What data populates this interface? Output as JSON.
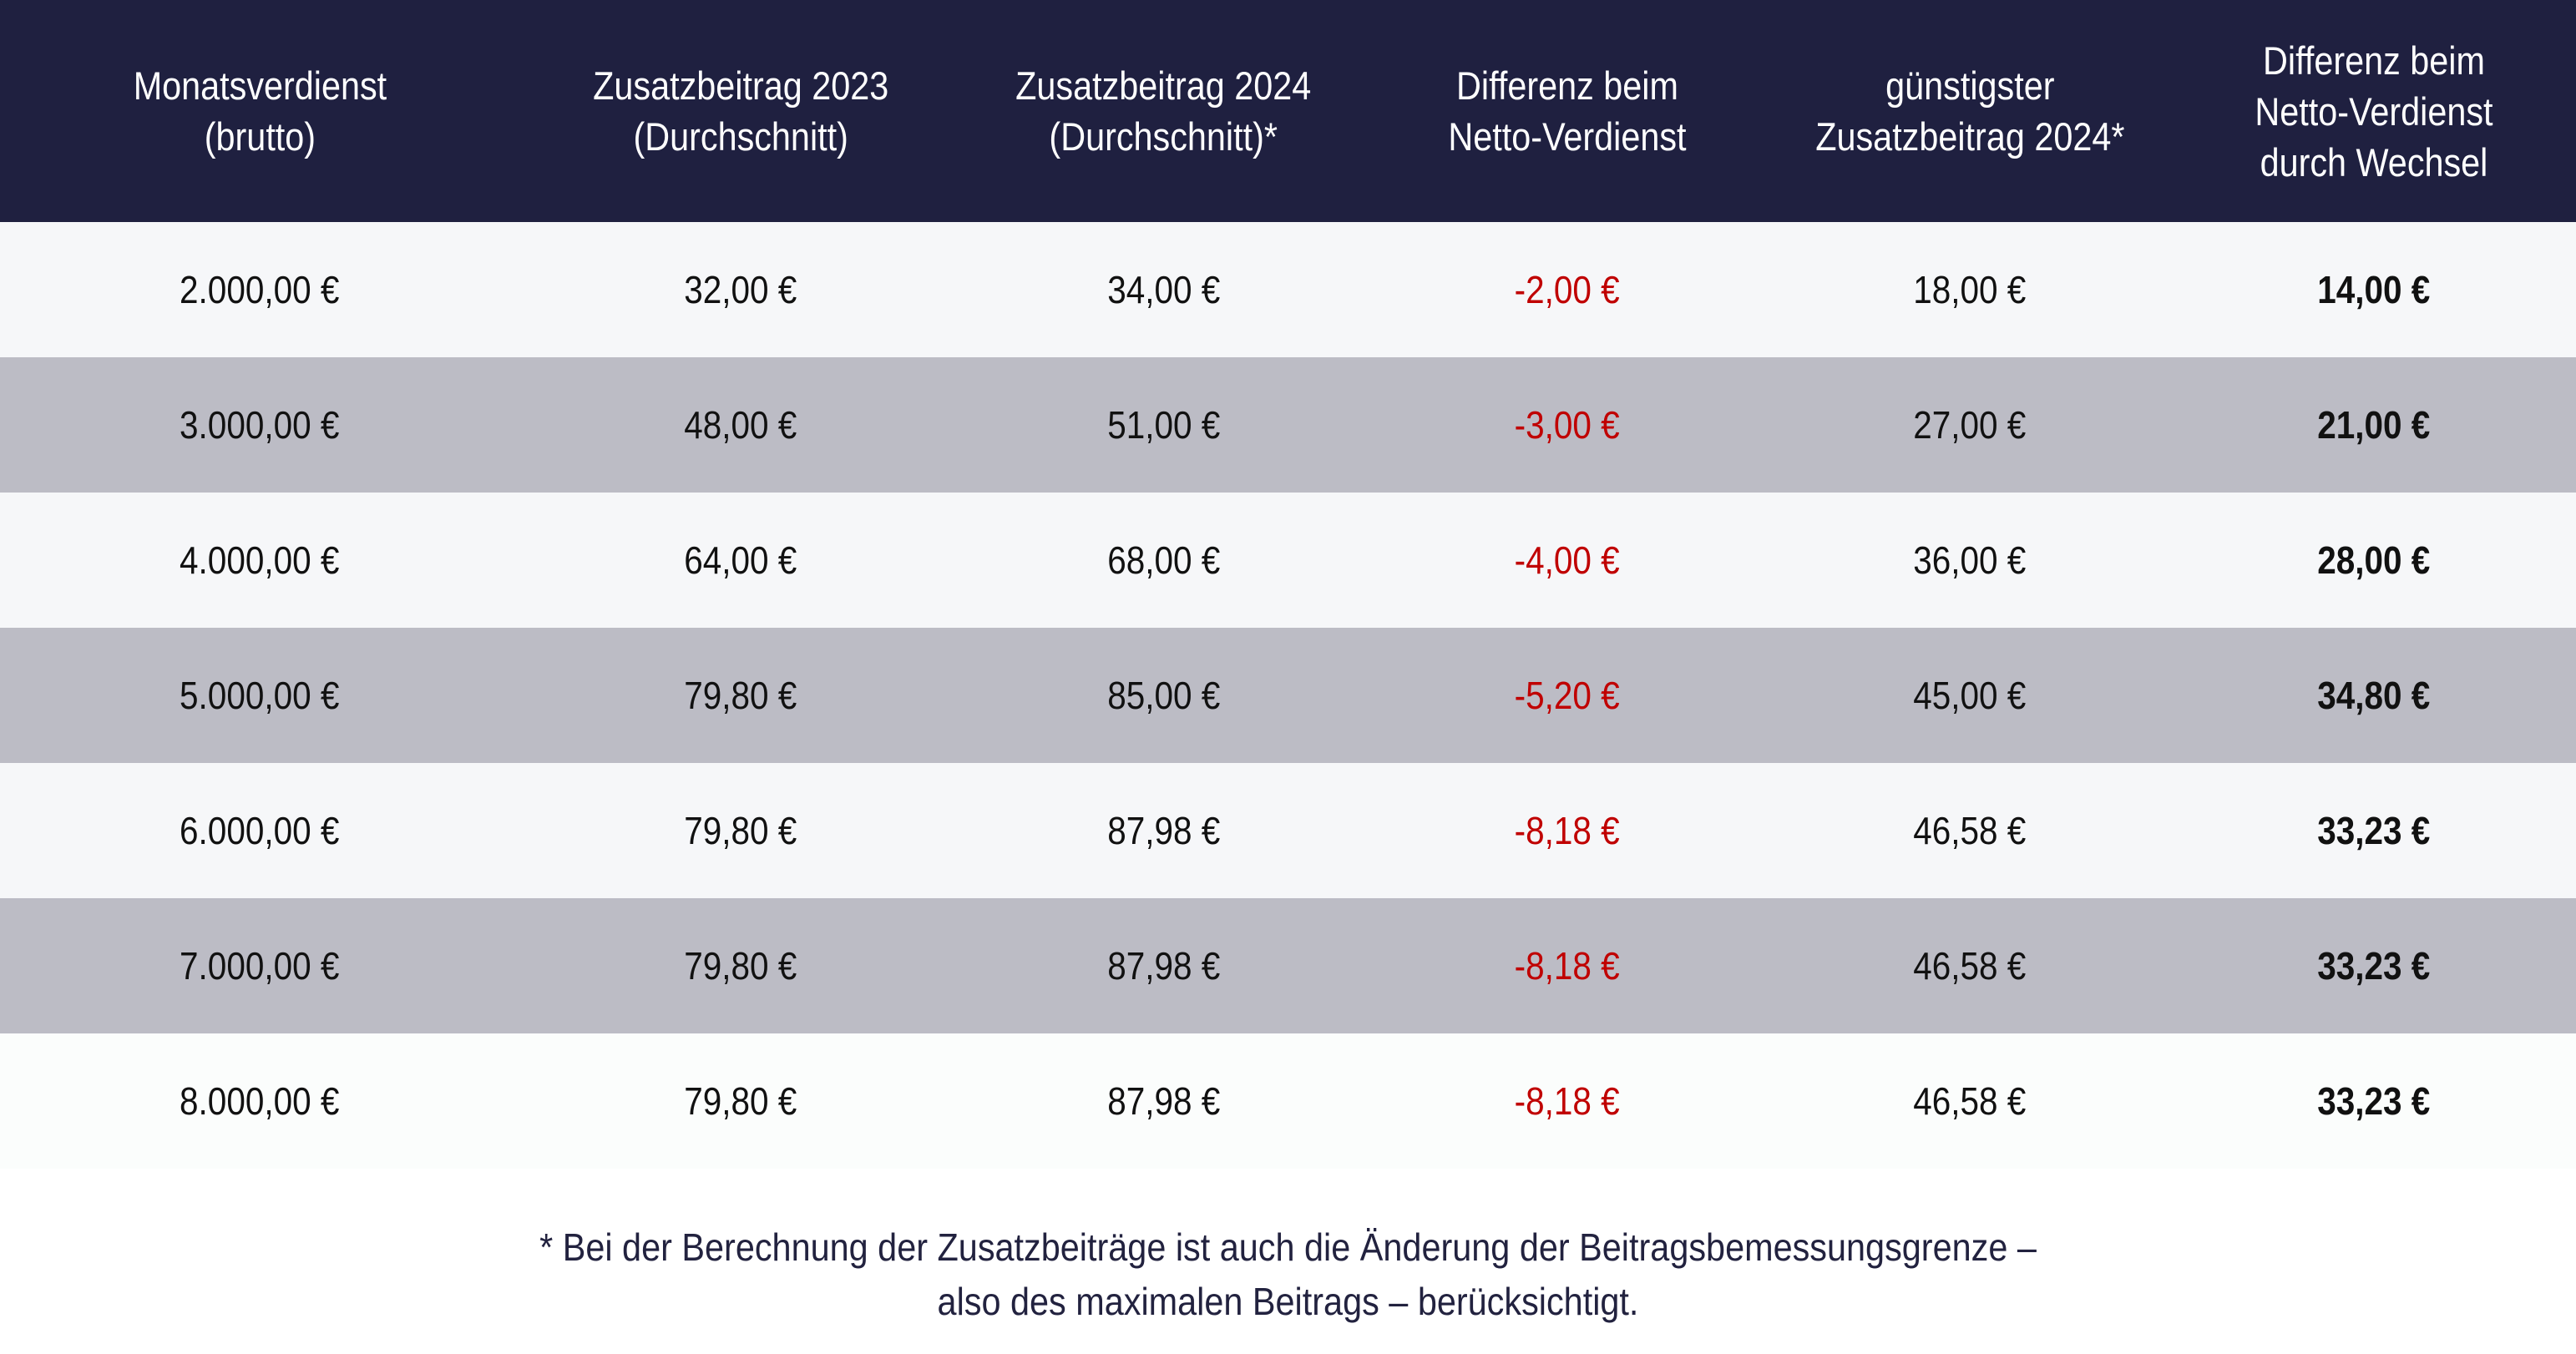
{
  "table": {
    "headers": [
      "Monatsverdienst\n(brutto)",
      "Zusatzbeitrag 2023\n(Durchschnitt)",
      "Zusatzbeitrag 2024\n(Durchschnitt)*",
      "Differenz beim\nNetto-Verdienst",
      "günstigster\nZusatzbeitrag 2024*",
      "Differenz beim\nNetto-Verdienst\ndurch Wechsel"
    ],
    "rows": [
      [
        "2.000,00 €",
        "32,00 €",
        "34,00 €",
        "-2,00 €",
        "18,00 €",
        "14,00 €"
      ],
      [
        "3.000,00 €",
        "48,00 €",
        "51,00 €",
        "-3,00 €",
        "27,00 €",
        "21,00 €"
      ],
      [
        "4.000,00 €",
        "64,00 €",
        "68,00 €",
        "-4,00 €",
        "36,00 €",
        "28,00 €"
      ],
      [
        "5.000,00 €",
        "79,80 €",
        "85,00 €",
        "-5,20 €",
        "45,00 €",
        "34,80 €"
      ],
      [
        "6.000,00 €",
        "79,80 €",
        "87,98 €",
        "-8,18 €",
        "46,58 €",
        "33,23 €"
      ],
      [
        "7.000,00 €",
        "79,80 €",
        "87,98 €",
        "-8,18 €",
        "46,58 €",
        "33,23 €"
      ],
      [
        "8.000,00 €",
        "79,80 €",
        "87,98 €",
        "-8,18 €",
        "46,58 €",
        "33,23 €"
      ]
    ]
  },
  "footnote": {
    "line1": "* Bei der Berechnung der Zusatzbeiträge ist auch die Änderung der Beitragsbemessungsgrenze –",
    "line2": "also des maximalen Beitrags – berücksichtigt."
  },
  "colors": {
    "header_bg": "#1f2040",
    "row_light": "#f6f7f9",
    "row_dark": "#bcbcc5",
    "negative": "#c00000",
    "footnote": "#22223f"
  }
}
